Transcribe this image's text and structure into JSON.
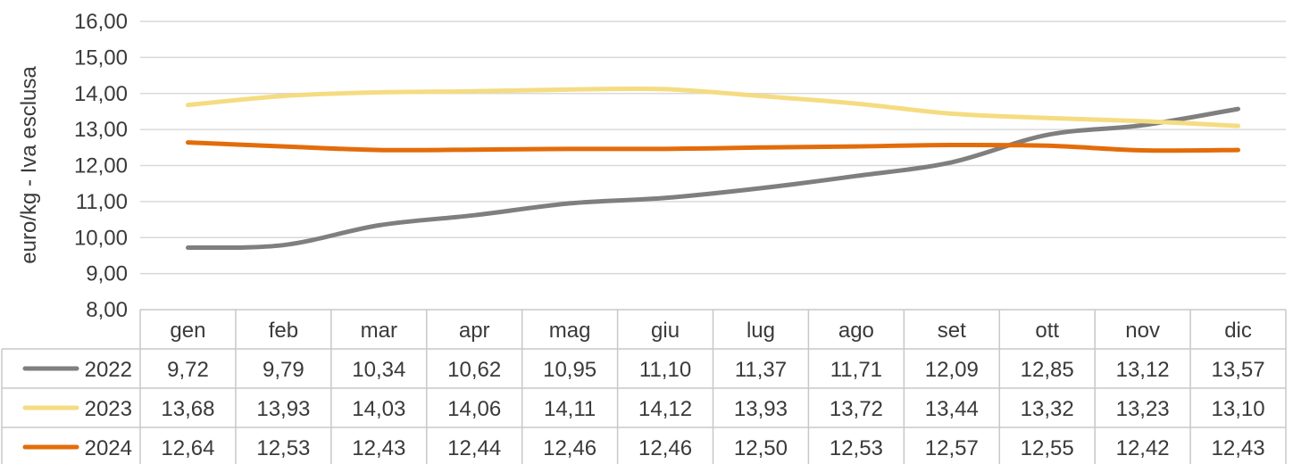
{
  "chart_data": {
    "type": "line",
    "title": "",
    "ylabel": "euro/kg  - Iva esclusa",
    "xlabel": "",
    "ylim": [
      8,
      16
    ],
    "yticks": [
      "8,00",
      "9,00",
      "10,00",
      "11,00",
      "12,00",
      "13,00",
      "14,00",
      "15,00",
      "16,00"
    ],
    "grid": true,
    "legend": "data-table",
    "categories": [
      "gen",
      "feb",
      "mar",
      "apr",
      "mag",
      "giu",
      "lug",
      "ago",
      "set",
      "ott",
      "nov",
      "dic"
    ],
    "series": [
      {
        "name": "2022",
        "color": "#7f7f7f",
        "values": [
          9.72,
          9.79,
          10.34,
          10.62,
          10.95,
          11.1,
          11.37,
          11.71,
          12.09,
          12.85,
          13.12,
          13.57
        ],
        "labels": [
          "9,72",
          "9,79",
          "10,34",
          "10,62",
          "10,95",
          "11,10",
          "11,37",
          "11,71",
          "12,09",
          "12,85",
          "13,12",
          "13,57"
        ]
      },
      {
        "name": "2023",
        "color": "#f5dc82",
        "values": [
          13.68,
          13.93,
          14.03,
          14.06,
          14.11,
          14.12,
          13.93,
          13.72,
          13.44,
          13.32,
          13.23,
          13.1
        ],
        "labels": [
          "13,68",
          "13,93",
          "14,03",
          "14,06",
          "14,11",
          "14,12",
          "13,93",
          "13,72",
          "13,44",
          "13,32",
          "13,23",
          "13,10"
        ]
      },
      {
        "name": "2024",
        "color": "#e36c0a",
        "values": [
          12.64,
          12.53,
          12.43,
          12.44,
          12.46,
          12.46,
          12.5,
          12.53,
          12.57,
          12.55,
          12.42,
          12.43
        ],
        "labels": [
          "12,64",
          "12,53",
          "12,43",
          "12,44",
          "12,46",
          "12,46",
          "12,50",
          "12,53",
          "12,57",
          "12,55",
          "12,42",
          "12,43"
        ]
      }
    ]
  }
}
